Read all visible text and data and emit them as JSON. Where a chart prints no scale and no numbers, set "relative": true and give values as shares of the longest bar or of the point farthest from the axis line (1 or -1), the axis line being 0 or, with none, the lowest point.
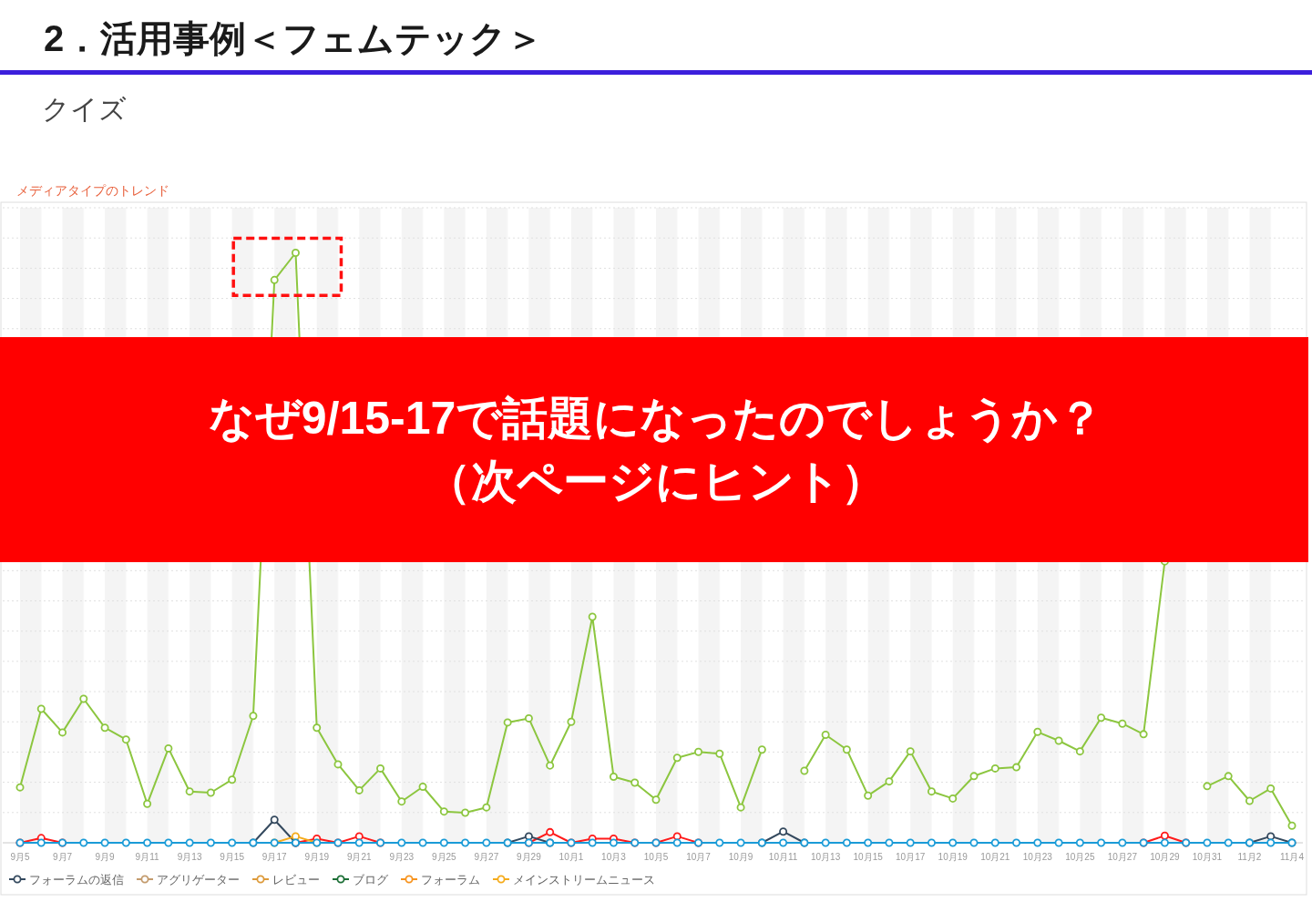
{
  "chart_data": {
    "type": "line",
    "title": "2．活用事例＜フェムテック＞",
    "subtitle": "クイズ",
    "annotations": [
      "メディアタイプのトレンド",
      "なぜ9/15-17で話題になったのでしょうか？",
      "（次ページにヒント）"
    ],
    "categories": [
      "9月5",
      null,
      "9月7",
      null,
      "9月9",
      null,
      "9月11",
      null,
      "9月13",
      null,
      "9月15",
      null,
      "9月17",
      null,
      "9月19",
      null,
      "9月21",
      null,
      "9月23",
      null,
      "9月25",
      null,
      "9月27",
      null,
      "9月29",
      null,
      "10月1",
      null,
      "10月3",
      null,
      "10月5",
      null,
      "10月7",
      null,
      "10月9",
      null,
      "10月11",
      null,
      "10月13",
      null,
      "10月15",
      null,
      "10月17",
      null,
      "10月19",
      null,
      "10月21",
      null,
      "10月23",
      null,
      "10月25",
      null,
      "10月27",
      null,
      "10月29",
      null,
      "10月31",
      null,
      "11月2",
      null,
      "11月4"
    ],
    "series": [
      {
        "color": "#8cc63f",
        "values": [
          0.094,
          0.227,
          0.187,
          0.244,
          0.195,
          0.175,
          0.066,
          0.16,
          0.087,
          0.085,
          0.107,
          0.215,
          0.954,
          1,
          0.195,
          0.133,
          0.089,
          0.126,
          0.07,
          0.095,
          0.053,
          0.051,
          0.06,
          0.204,
          0.211,
          0.131,
          0.205,
          0.383,
          0.112,
          0.102,
          0.073,
          0.144,
          0.154,
          0.151,
          0.06,
          0.158,
          null,
          0.122,
          0.183,
          0.158,
          0.08,
          0.104,
          0.155,
          0.087,
          0.075,
          0.113,
          0.126,
          0.128,
          0.188,
          0.173,
          0.155,
          0.212,
          0.202,
          0.184,
          0.477,
          null,
          0.096,
          0.113,
          0.071,
          0.092,
          0.029
        ]
      },
      {
        "color": "#ff1a1a",
        "values": [
          0,
          0.008,
          0,
          null,
          null,
          null,
          null,
          null,
          null,
          null,
          null,
          null,
          null,
          0,
          0.007,
          0,
          0.011,
          0,
          null,
          null,
          null,
          null,
          null,
          null,
          0,
          0.018,
          0,
          0.007,
          0.007,
          0,
          0,
          0.011,
          0,
          null,
          null,
          null,
          null,
          null,
          null,
          null,
          null,
          null,
          null,
          null,
          null,
          null,
          null,
          null,
          null,
          null,
          null,
          null,
          null,
          0,
          0.012,
          0,
          null,
          null,
          null,
          null,
          null
        ]
      },
      {
        "name": "フォーラムの返信",
        "color": "#34495e",
        "values": [
          null,
          null,
          null,
          null,
          null,
          null,
          null,
          null,
          null,
          null,
          null,
          0,
          0.039,
          0,
          null,
          null,
          null,
          null,
          null,
          null,
          null,
          null,
          null,
          0,
          0.011,
          0,
          null,
          null,
          null,
          null,
          null,
          null,
          null,
          null,
          null,
          0,
          0.019,
          0,
          null,
          null,
          null,
          null,
          null,
          null,
          null,
          null,
          null,
          null,
          null,
          null,
          null,
          null,
          null,
          null,
          null,
          null,
          null,
          null,
          0,
          0.011,
          0
        ]
      },
      {
        "name": "アグリゲーター",
        "color": "#c39b6d",
        "values": [
          null,
          null,
          null,
          null,
          null,
          null,
          null,
          null,
          null,
          null,
          null,
          null,
          null,
          null,
          null,
          null,
          null,
          null,
          null,
          null,
          null,
          null,
          null,
          null,
          null,
          null,
          null,
          null,
          null,
          null,
          null,
          null,
          null,
          null,
          null,
          null,
          null,
          null,
          null,
          null,
          null,
          null,
          null,
          null,
          null,
          null,
          null,
          null,
          null,
          null,
          null,
          null,
          null,
          null,
          null,
          null,
          null,
          null,
          null,
          null,
          null
        ]
      },
      {
        "name": "レビュー",
        "color": "#dd9a3a",
        "values": [
          null,
          null,
          null,
          null,
          null,
          null,
          null,
          null,
          null,
          null,
          null,
          null,
          null,
          null,
          null,
          null,
          null,
          null,
          null,
          null,
          null,
          null,
          null,
          null,
          null,
          null,
          null,
          null,
          null,
          null,
          null,
          null,
          null,
          null,
          null,
          null,
          null,
          null,
          null,
          null,
          null,
          null,
          null,
          null,
          null,
          null,
          null,
          null,
          null,
          null,
          null,
          null,
          null,
          null,
          null,
          null,
          null,
          null,
          null,
          null,
          null
        ]
      },
      {
        "name": "ブログ",
        "color": "#1b6e35",
        "values": [
          null,
          null,
          null,
          null,
          null,
          null,
          null,
          null,
          null,
          null,
          null,
          null,
          null,
          null,
          null,
          null,
          null,
          null,
          null,
          null,
          null,
          null,
          null,
          null,
          null,
          null,
          null,
          null,
          null,
          null,
          null,
          null,
          null,
          null,
          null,
          null,
          null,
          null,
          null,
          null,
          null,
          null,
          null,
          null,
          null,
          null,
          null,
          null,
          null,
          null,
          null,
          null,
          null,
          null,
          null,
          null,
          null,
          null,
          null,
          null,
          null
        ]
      },
      {
        "name": "フォーラム",
        "color": "#f7931e",
        "values": [
          null,
          null,
          null,
          null,
          null,
          null,
          null,
          null,
          null,
          null,
          null,
          null,
          null,
          null,
          null,
          null,
          null,
          null,
          null,
          null,
          null,
          null,
          null,
          null,
          null,
          null,
          null,
          null,
          null,
          null,
          null,
          null,
          null,
          null,
          null,
          null,
          null,
          null,
          null,
          null,
          null,
          null,
          null,
          null,
          null,
          null,
          null,
          null,
          null,
          null,
          null,
          null,
          null,
          null,
          null,
          null,
          null,
          null,
          null,
          null,
          null
        ]
      },
      {
        "name": "メインストリームニュース",
        "color": "#f5ab1b",
        "values": [
          null,
          null,
          null,
          null,
          null,
          null,
          null,
          null,
          null,
          null,
          null,
          null,
          0,
          0.011,
          0,
          null,
          null,
          null,
          null,
          null,
          null,
          null,
          null,
          null,
          null,
          null,
          null,
          null,
          null,
          null,
          null,
          null,
          null,
          null,
          null,
          null,
          null,
          null,
          null,
          null,
          null,
          null,
          null,
          null,
          null,
          null,
          null,
          null,
          null,
          null,
          null,
          null,
          null,
          null,
          null,
          null,
          null,
          null,
          null,
          null,
          null
        ]
      },
      {
        "color": "#1a9bd7",
        "values": [
          0,
          0,
          0,
          0,
          0,
          0,
          0,
          0,
          0,
          0,
          0,
          0,
          0,
          0,
          0,
          0,
          0,
          0,
          0,
          0,
          0,
          0,
          0,
          0,
          0,
          0,
          0,
          0,
          0,
          0,
          0,
          0,
          0,
          0,
          0,
          0,
          0,
          0,
          0,
          0,
          0,
          0,
          0,
          0,
          0,
          0,
          0,
          0,
          0,
          0,
          0,
          0,
          0,
          0,
          0,
          0,
          0,
          0,
          0,
          0,
          0
        ]
      }
    ],
    "relative": true,
    "grid": true,
    "legend": "bottom left",
    "marker": "circle",
    "line_style": "solid"
  }
}
